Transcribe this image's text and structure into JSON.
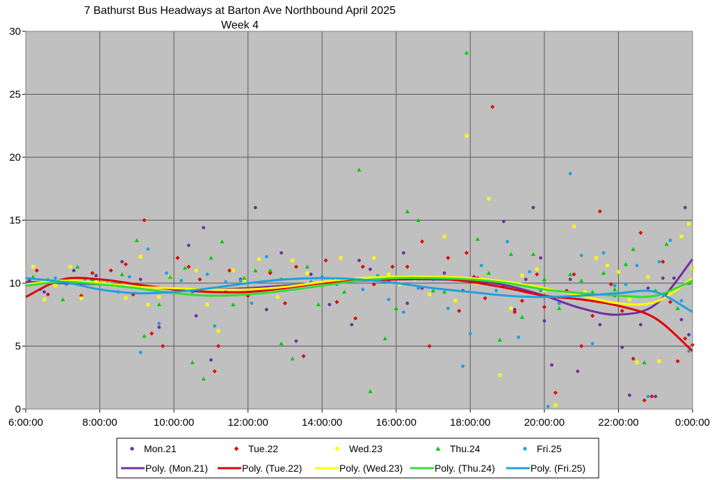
{
  "chart_data": {
    "type": "scatter",
    "title": "7 Bathurst Bus Headways at Barton Ave Northbound April 2025",
    "subtitle": "Week 4",
    "xlabel": "",
    "ylabel": "",
    "xlim": [
      "6:00:00",
      "0:00:00"
    ],
    "ylim": [
      0,
      30
    ],
    "x_ticks": [
      "6:00:00",
      "8:00:00",
      "10:00:00",
      "12:00:00",
      "14:00:00",
      "16:00:00",
      "18:00:00",
      "20:00:00",
      "22:00:00",
      "0:00:00"
    ],
    "y_ticks": [
      "0",
      "5",
      "10",
      "15",
      "20",
      "25",
      "30"
    ],
    "grid": true,
    "legend_position": "bottom",
    "plot_background": "#c0c0c0",
    "series": [
      {
        "name": "Mon.21",
        "color": "#7030a0",
        "marker": "circle",
        "x": [
          6.1,
          6.5,
          7.3,
          7.9,
          8.6,
          9.1,
          9.6,
          10.4,
          10.6,
          10.8,
          11.0,
          11.4,
          11.8,
          12.2,
          12.5,
          12.9,
          13.3,
          13.7,
          14.2,
          14.6,
          14.8,
          15.0,
          15.3,
          15.8,
          16.2,
          16.3,
          16.7,
          17.3,
          17.8,
          18.2,
          18.6,
          18.9,
          19.2,
          19.5,
          19.7,
          19.9,
          20.0,
          20.2,
          20.4,
          20.7,
          20.9,
          21.2,
          21.5,
          21.9,
          22.1,
          22.3,
          22.6,
          22.8,
          23.0,
          23.2,
          23.5,
          23.7,
          23.8,
          23.9
        ],
        "y": [
          10.2,
          9.3,
          11.0,
          10.6,
          11.7,
          10.3,
          6.5,
          13.0,
          7.4,
          14.4,
          3.9,
          9.4,
          10.3,
          16.0,
          7.9,
          12.4,
          5.4,
          10.7,
          8.3,
          10.3,
          6.7,
          11.8,
          11.1,
          10.1,
          12.4,
          8.4,
          9.6,
          10.8,
          9.4,
          10.4,
          10.2,
          14.9,
          7.9,
          10.3,
          16.0,
          12.0,
          7.0,
          3.5,
          8.4,
          10.3,
          3.0,
          9.0,
          6.7,
          9.0,
          4.9,
          1.1,
          6.7,
          9.6,
          1.0,
          10.4,
          10.4,
          7.1,
          16.0,
          5.9
        ]
      },
      {
        "name": "Tue.22",
        "color": "#e00000",
        "marker": "diamond",
        "x": [
          6.3,
          6.6,
          7.5,
          7.8,
          8.3,
          8.7,
          8.9,
          9.2,
          9.4,
          9.7,
          10.1,
          10.4,
          10.7,
          11.1,
          11.2,
          11.5,
          12.0,
          12.6,
          13.0,
          13.3,
          13.5,
          14.1,
          14.4,
          14.9,
          15.1,
          15.4,
          15.9,
          16.3,
          16.7,
          16.9,
          17.4,
          17.7,
          17.9,
          18.1,
          18.4,
          18.6,
          18.9,
          19.2,
          19.4,
          19.8,
          20.0,
          20.3,
          20.6,
          20.8,
          21.0,
          21.3,
          21.5,
          21.8,
          22.1,
          22.4,
          22.6,
          22.7,
          22.9,
          23.2,
          23.4,
          23.6,
          23.8,
          24.0
        ],
        "y": [
          11.0,
          9.1,
          9.0,
          10.8,
          11.0,
          11.5,
          9.1,
          15.0,
          6.0,
          5.0,
          12.0,
          11.3,
          10.3,
          3.0,
          5.0,
          11.0,
          9.0,
          10.8,
          8.4,
          11.3,
          4.2,
          11.8,
          8.5,
          7.2,
          11.3,
          9.9,
          11.3,
          11.3,
          13.3,
          5.0,
          12.0,
          7.8,
          12.4,
          10.5,
          8.8,
          24.0,
          9.8,
          7.7,
          8.6,
          10.7,
          8.1,
          1.3,
          9.4,
          10.7,
          5.0,
          7.4,
          15.7,
          9.9,
          7.8,
          4.0,
          14.0,
          0.7,
          1.0,
          11.7,
          8.5,
          3.8,
          5.6,
          5.1
        ]
      },
      {
        "name": "Wed.23",
        "color": "#ffff00",
        "marker": "square",
        "x": [
          6.2,
          6.5,
          6.8,
          7.2,
          7.5,
          7.9,
          8.4,
          8.7,
          9.1,
          9.3,
          9.6,
          9.9,
          10.2,
          10.6,
          10.9,
          11.2,
          11.6,
          11.9,
          12.3,
          12.8,
          13.2,
          13.6,
          14.1,
          14.5,
          14.9,
          15.4,
          15.8,
          16.1,
          16.5,
          16.9,
          17.3,
          17.6,
          17.9,
          18.2,
          18.5,
          18.8,
          19.1,
          19.4,
          19.8,
          20.0,
          20.3,
          20.8,
          21.1,
          21.4,
          21.7,
          22.0,
          22.3,
          22.5,
          22.8,
          23.1,
          23.4,
          23.7,
          23.9,
          24.0
        ],
        "y": [
          11.3,
          8.7,
          9.8,
          11.3,
          8.8,
          10.1,
          9.8,
          8.8,
          12.1,
          8.3,
          8.9,
          10.5,
          9.3,
          11.0,
          8.3,
          6.2,
          11.0,
          10.2,
          11.9,
          8.9,
          11.8,
          10.8,
          9.9,
          12.0,
          10.3,
          12.0,
          10.7,
          9.9,
          10.3,
          9.1,
          13.7,
          8.6,
          21.7,
          10.0,
          16.7,
          2.7,
          8.0,
          10.6,
          11.1,
          9.4,
          0.3,
          14.5,
          9.3,
          12.0,
          11.4,
          10.9,
          8.7,
          3.7,
          10.5,
          3.8,
          9.3,
          13.7,
          14.7,
          11.2
        ]
      },
      {
        "name": "Thu.24",
        "color": "#00cc00",
        "marker": "triangle",
        "x": [
          6.2,
          6.6,
          7.0,
          7.4,
          7.8,
          8.2,
          8.6,
          9.0,
          9.2,
          9.6,
          9.9,
          10.3,
          10.5,
          10.8,
          11.0,
          11.3,
          11.6,
          11.9,
          12.2,
          12.6,
          12.9,
          13.2,
          13.6,
          13.9,
          14.3,
          14.6,
          15.0,
          15.3,
          15.7,
          16.0,
          16.3,
          16.6,
          17.0,
          17.3,
          17.6,
          17.9,
          18.2,
          18.5,
          18.8,
          19.1,
          19.4,
          19.7,
          20.0,
          20.4,
          20.7,
          21.0,
          21.3,
          21.6,
          21.9,
          22.2,
          22.4,
          22.7,
          23.0,
          23.3,
          23.6,
          23.9
        ],
        "y": [
          10.5,
          10.3,
          8.7,
          11.3,
          10.3,
          10.0,
          10.7,
          13.4,
          5.8,
          8.3,
          10.5,
          11.2,
          3.7,
          2.4,
          12.0,
          13.3,
          8.3,
          10.4,
          11.0,
          11.0,
          5.2,
          4.0,
          11.3,
          8.3,
          10.3,
          9.3,
          19.0,
          1.4,
          5.6,
          8.0,
          15.7,
          15.0,
          9.4,
          9.3,
          10.3,
          28.3,
          13.5,
          10.8,
          5.5,
          12.3,
          7.3,
          12.3,
          10.3,
          8.0,
          10.7,
          10.2,
          9.3,
          10.8,
          9.5,
          11.5,
          12.7,
          3.7,
          9.4,
          13.1,
          8.0,
          10.0
        ]
      },
      {
        "name": "Fri.25",
        "color": "#1ea0e0",
        "marker": "circle",
        "x": [
          6.4,
          6.8,
          7.1,
          7.6,
          8.0,
          8.5,
          8.8,
          9.1,
          9.3,
          9.6,
          9.8,
          10.2,
          10.5,
          10.9,
          11.1,
          11.4,
          11.8,
          12.1,
          12.5,
          12.9,
          13.3,
          13.7,
          14.0,
          14.4,
          14.8,
          15.1,
          15.5,
          15.8,
          16.2,
          16.6,
          17.0,
          17.4,
          17.8,
          18.0,
          18.3,
          18.7,
          19.0,
          19.3,
          19.6,
          19.9,
          20.1,
          20.4,
          20.7,
          21.0,
          21.3,
          21.6,
          21.9,
          22.2,
          22.5,
          22.8,
          23.1,
          23.4,
          23.7,
          23.9
        ],
        "y": [
          9.5,
          10.4,
          9.9,
          10.3,
          10.0,
          9.3,
          10.5,
          4.5,
          12.7,
          6.8,
          10.8,
          10.2,
          9.3,
          10.7,
          6.6,
          10.1,
          10.2,
          8.4,
          12.1,
          10.3,
          9.8,
          10.1,
          10.5,
          9.9,
          10.3,
          9.5,
          10.6,
          8.7,
          7.7,
          9.6,
          10.3,
          8.0,
          3.4,
          6.0,
          11.4,
          9.4,
          13.3,
          5.7,
          10.9,
          9.4,
          0.2,
          8.4,
          18.7,
          12.2,
          5.2,
          12.4,
          9.8,
          9.9,
          11.4,
          1.0,
          11.7,
          13.4,
          8.6,
          4.6
        ]
      }
    ],
    "trendlines": [
      {
        "name": "Poly. (Mon.21)",
        "color": "#7030a0",
        "x": [
          6,
          7,
          8,
          9,
          10,
          11,
          12,
          13,
          14,
          15,
          16,
          17,
          18,
          19,
          20,
          21,
          22,
          23,
          24
        ],
        "y": [
          10.1,
          10.0,
          9.9,
          9.7,
          9.6,
          9.5,
          9.6,
          9.8,
          10.0,
          10.2,
          10.3,
          10.3,
          10.2,
          9.8,
          9.0,
          8.0,
          7.5,
          8.3,
          11.9
        ]
      },
      {
        "name": "Poly. (Tue.22)",
        "color": "#e00000",
        "x": [
          6,
          7,
          8,
          9,
          10,
          11,
          12,
          13,
          14,
          15,
          16,
          17,
          18,
          19,
          20,
          21,
          22,
          23,
          24
        ],
        "y": [
          8.9,
          10.3,
          10.3,
          9.9,
          9.5,
          9.3,
          9.3,
          9.6,
          10.0,
          10.2,
          10.3,
          10.4,
          10.1,
          9.6,
          9.0,
          8.7,
          8.2,
          7.2,
          4.6
        ]
      },
      {
        "name": "Poly. (Wed.23)",
        "color": "#ffff00",
        "x": [
          6,
          7,
          8,
          9,
          10,
          11,
          12,
          13,
          14,
          15,
          16,
          17,
          18,
          19,
          20,
          21,
          22,
          23,
          24
        ],
        "y": [
          9.9,
          10.2,
          10.0,
          9.7,
          9.6,
          9.5,
          9.5,
          9.7,
          10.1,
          10.4,
          10.5,
          10.5,
          10.4,
          10.1,
          9.6,
          9.0,
          8.4,
          8.5,
          10.4
        ]
      },
      {
        "name": "Poly. (Thu.24)",
        "color": "#33dd33",
        "x": [
          6,
          7,
          8,
          9,
          10,
          11,
          12,
          13,
          14,
          15,
          16,
          17,
          18,
          19,
          20,
          21,
          22,
          23,
          24
        ],
        "y": [
          9.8,
          10.1,
          9.9,
          9.6,
          9.2,
          9.0,
          9.1,
          9.4,
          9.8,
          10.2,
          10.4,
          10.4,
          10.3,
          10.0,
          9.5,
          9.2,
          9.0,
          9.0,
          10.2
        ]
      },
      {
        "name": "Poly. (Fri.25)",
        "color": "#1ea0e0",
        "x": [
          6,
          7,
          8,
          9,
          10,
          11,
          12,
          13,
          14,
          15,
          16,
          17,
          18,
          19,
          20,
          21,
          22,
          23,
          24
        ],
        "y": [
          10.4,
          10.1,
          9.5,
          9.2,
          9.3,
          9.6,
          10.0,
          10.3,
          10.4,
          10.3,
          10.0,
          9.6,
          9.3,
          9.0,
          8.9,
          9.0,
          9.2,
          9.3,
          7.7
        ]
      }
    ]
  }
}
